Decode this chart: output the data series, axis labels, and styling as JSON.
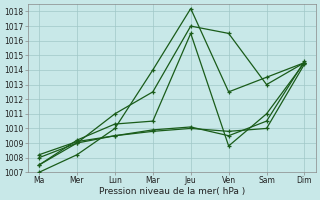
{
  "title": "Pression niveau de la mer( hPa )",
  "bg_color": "#c8e8e8",
  "grid_color": "#a0c8c8",
  "line_color": "#1a5c1a",
  "ylim": [
    1007,
    1018.5
  ],
  "yticks": [
    1007,
    1008,
    1009,
    1010,
    1011,
    1012,
    1013,
    1014,
    1015,
    1016,
    1017,
    1018
  ],
  "x_labels": [
    "Ma",
    "Mer",
    "Lun",
    "Mar",
    "Jeu",
    "Ven",
    "Sam",
    "Dim"
  ],
  "x_positions": [
    0,
    1,
    2,
    3,
    4,
    5,
    6,
    7
  ],
  "series": [
    {
      "x": [
        0,
        1,
        2,
        3,
        4,
        5,
        6,
        7
      ],
      "y": [
        1007.0,
        1008.2,
        1010.0,
        1014.0,
        1018.2,
        1012.5,
        1013.5,
        1014.5
      ]
    },
    {
      "x": [
        0,
        1,
        2,
        3,
        4,
        5,
        6,
        7
      ],
      "y": [
        1007.5,
        1009.0,
        1011.0,
        1012.5,
        1017.0,
        1016.5,
        1013.0,
        1014.5
      ]
    },
    {
      "x": [
        0,
        1,
        2,
        3,
        4,
        5,
        6,
        7
      ],
      "y": [
        1007.5,
        1009.2,
        1010.3,
        1010.5,
        1016.5,
        1008.8,
        1011.0,
        1014.5
      ]
    },
    {
      "x": [
        0,
        1,
        2,
        3,
        4,
        5,
        6,
        7
      ],
      "y": [
        1008.0,
        1009.0,
        1009.5,
        1009.8,
        1010.0,
        1009.8,
        1010.0,
        1014.4
      ]
    },
    {
      "x": [
        0,
        1,
        2,
        3,
        4,
        5,
        6,
        7
      ],
      "y": [
        1008.2,
        1009.1,
        1009.5,
        1009.9,
        1010.1,
        1009.5,
        1010.5,
        1014.6
      ]
    }
  ]
}
